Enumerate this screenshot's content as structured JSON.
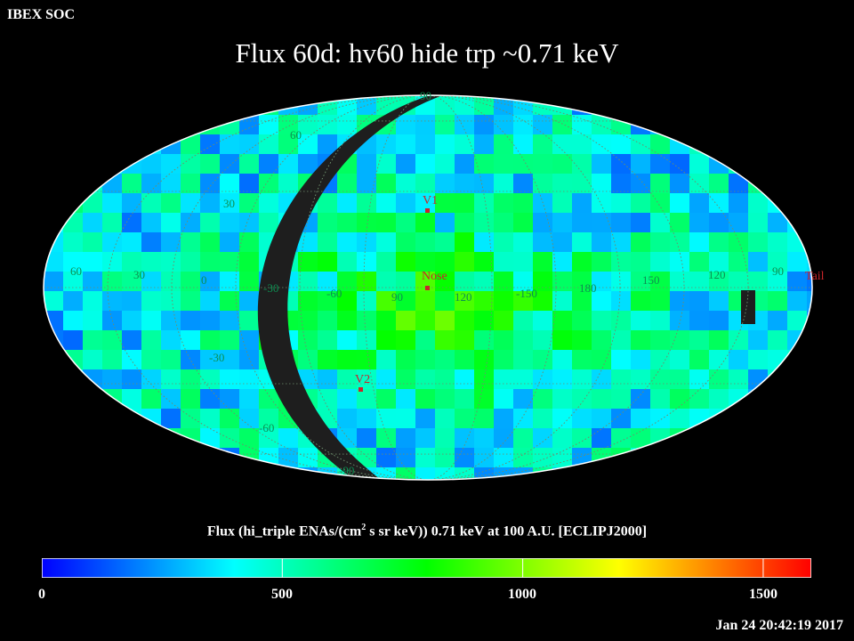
{
  "header": {
    "source": "IBEX SOC",
    "title": "Flux   60d: hv60 hide trp ~0.71 keV"
  },
  "map": {
    "projection": "mollweide",
    "frame": "ECLIPJ2000",
    "gridlines": true,
    "lat_labels": [
      "90",
      "60",
      "30",
      "-30",
      "-60",
      "-90"
    ],
    "lon_labels": [
      "60",
      "30",
      "0",
      "-30",
      "-60",
      "90",
      "120",
      "-150",
      "180",
      "150",
      "120",
      "90"
    ],
    "markers": [
      {
        "id": "v1",
        "label": "V1",
        "color": "#c8262a"
      },
      {
        "id": "nose",
        "label": "Nose",
        "color": "#c8262a"
      },
      {
        "id": "v2",
        "label": "V2",
        "color": "#c8262a"
      },
      {
        "id": "tail",
        "label": "Tail",
        "color": "#c8262a"
      }
    ],
    "nodata_color": "#1e1e1e",
    "grid_color": "#6d8f6d",
    "label_color": "#0c8f52"
  },
  "colorbar": {
    "caption_pre": "Flux (hi_triple ENAs/(cm",
    "caption_sup": "2",
    "caption_post": " s sr keV))  0.71 keV at 100 A.U. [ECLIPJ2000]",
    "min": 0,
    "max": 1600,
    "ticks": [
      "0",
      "500",
      "1000",
      "1500"
    ],
    "colormap": [
      "#0000ff",
      "#00ffff",
      "#00ff00",
      "#ffff00",
      "#ff0000"
    ]
  },
  "timestamp": "Jan 24 20:42:19 2017"
}
